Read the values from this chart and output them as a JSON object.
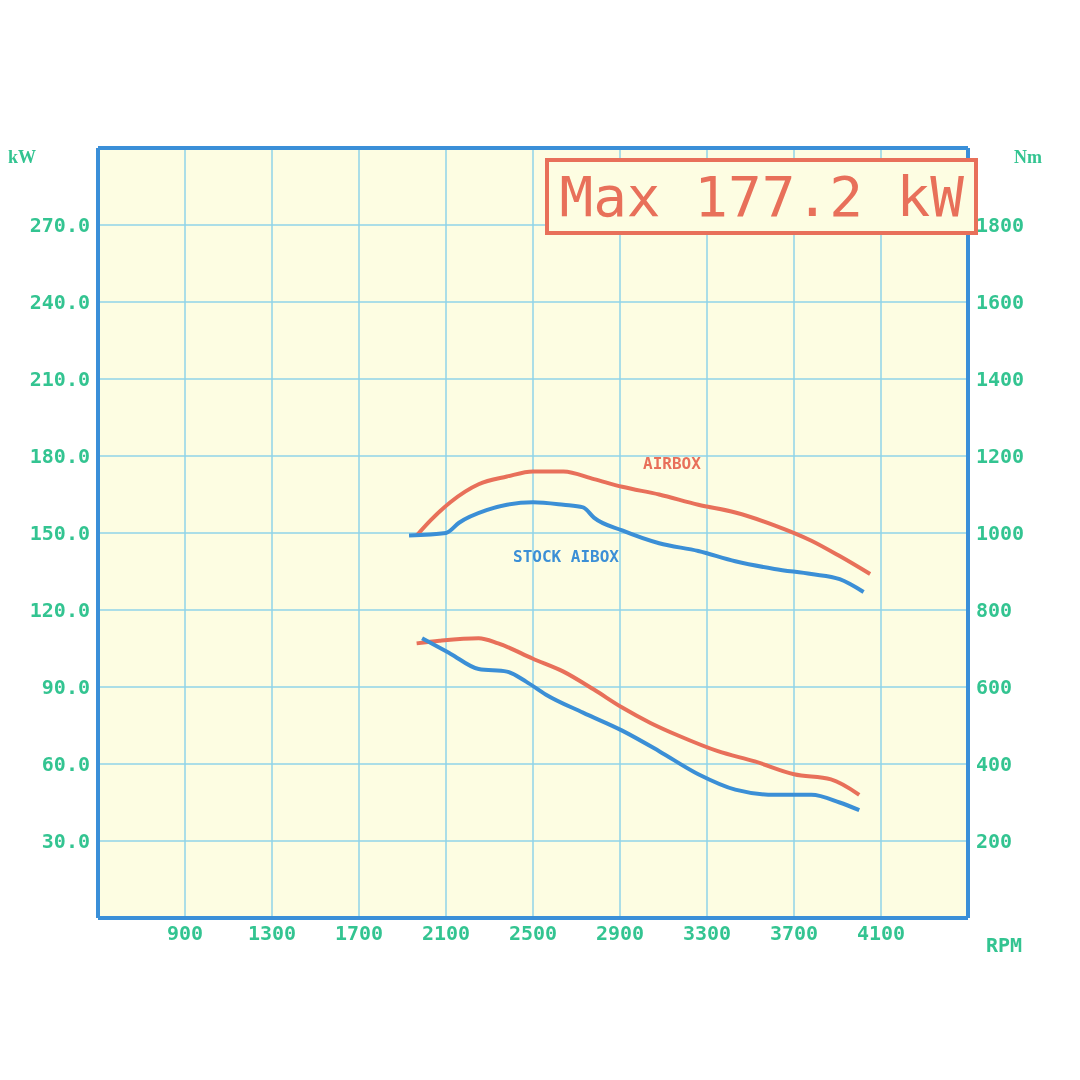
{
  "chart_data": {
    "type": "line",
    "xlabel": "RPM",
    "ylabel": "kW",
    "y2label": "Nm",
    "annotations": [
      "Max 177.2 kW"
    ],
    "xlim": [
      500,
      4500
    ],
    "xticks": [
      900,
      1300,
      1700,
      2100,
      2500,
      2900,
      3300,
      3700,
      4100
    ],
    "ylim": [
      0,
      300
    ],
    "yticks": [
      {
        "value": 30,
        "label": "30.0"
      },
      {
        "value": 60,
        "label": "60.0"
      },
      {
        "value": 90,
        "label": "90.0"
      },
      {
        "value": 120,
        "label": "120.0"
      },
      {
        "value": 150,
        "label": "150.0"
      },
      {
        "value": 180,
        "label": "180.0"
      },
      {
        "value": 210,
        "label": "210.0"
      },
      {
        "value": 240,
        "label": "240.0"
      },
      {
        "value": 270,
        "label": "270.0"
      }
    ],
    "y2lim": [
      0,
      2000
    ],
    "y2ticks": [
      200,
      400,
      600,
      800,
      1000,
      1200,
      1400,
      1600,
      1800
    ],
    "grid": true,
    "marker": "none",
    "line_style": "solid",
    "series": [
      {
        "name": "AIRBOX",
        "color": "#e8705a",
        "x": [
          1965,
          2030,
          2120,
          2250,
          2380,
          2500,
          2640,
          2780,
          2910,
          3080,
          3260,
          3430,
          3610,
          3780,
          3910,
          4050
        ],
        "values": [
          149,
          155,
          162,
          169,
          172,
          174,
          174,
          171,
          168,
          165,
          161,
          158,
          153,
          147,
          141,
          134
        ]
      },
      {
        "name": "STOCK AIBOX",
        "color": "#3b8fd6",
        "x": [
          1930,
          2100,
          2160,
          2290,
          2380,
          2500,
          2640,
          2730,
          2780,
          2910,
          3080,
          3260,
          3430,
          3610,
          3780,
          3910,
          4020
        ],
        "values": [
          149,
          150,
          154,
          159,
          161,
          162,
          161,
          160,
          156,
          151,
          146,
          143,
          139,
          136,
          134,
          132,
          127
        ]
      },
      {
        "color": "#e8705a",
        "x": [
          1965,
          2070,
          2250,
          2340,
          2500,
          2640,
          2780,
          2910,
          3040,
          3170,
          3350,
          3520,
          3700,
          3870,
          4000
        ],
        "values": [
          107,
          108,
          109,
          107,
          101,
          96,
          89,
          82,
          76,
          71,
          65,
          61,
          56,
          54,
          48
        ]
      },
      {
        "color": "#3b8fd6",
        "x": [
          1990,
          2120,
          2250,
          2380,
          2470,
          2560,
          2730,
          2910,
          3080,
          3260,
          3430,
          3610,
          3780,
          3910,
          4000
        ],
        "values": [
          109,
          103,
          97,
          96,
          92,
          87,
          80,
          73,
          65,
          56,
          50,
          48,
          48,
          45,
          42
        ]
      }
    ]
  }
}
